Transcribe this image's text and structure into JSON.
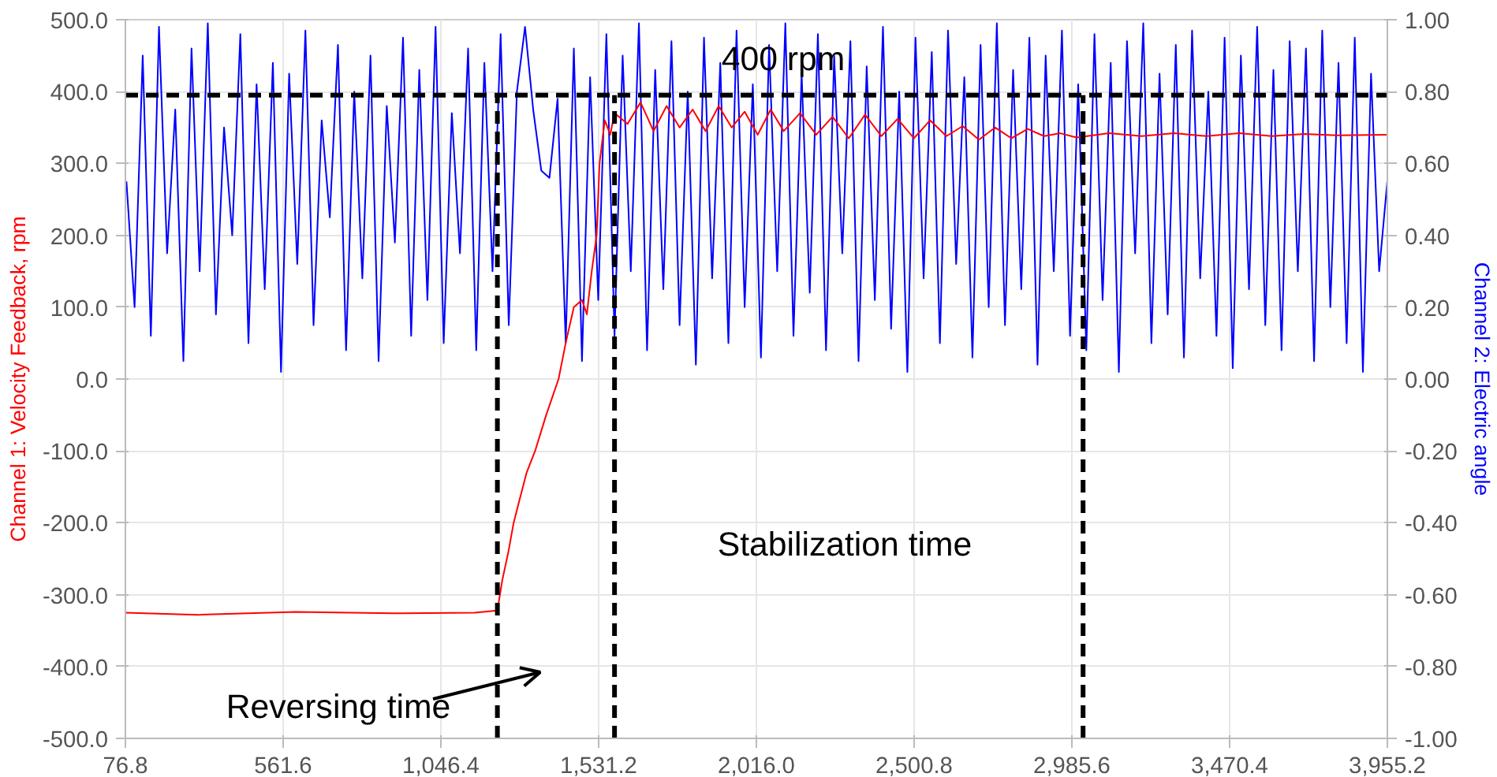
{
  "chart_data": {
    "type": "line",
    "xlabel": null,
    "ylabel": "Channel 1: Velocity Feedback, rpm",
    "y2label": "Channel 2: Electric angle",
    "xlim": [
      76.8,
      3955.2
    ],
    "xticks": [
      76.8,
      561.6,
      {
        "value": 1046.4,
        "label": "1,046.4"
      },
      {
        "value": 1531.2,
        "label": "1,531.2"
      },
      {
        "value": 2016.0,
        "label": "2,016.0"
      },
      {
        "value": 2500.8,
        "label": "2,500.8"
      },
      {
        "value": 2985.6,
        "label": "2,985.6"
      },
      {
        "value": 3470.4,
        "label": "3,470.4"
      },
      {
        "value": 3955.2,
        "label": "3,955.2"
      }
    ],
    "ylim": [
      -500,
      500
    ],
    "yticks": [
      {
        "value": -500,
        "label": "-500.0"
      },
      {
        "value": -400,
        "label": "-400.0"
      },
      {
        "value": -300,
        "label": "-300.0"
      },
      {
        "value": -200,
        "label": "-200.0"
      },
      {
        "value": -100,
        "label": "-100.0"
      },
      {
        "value": 0,
        "label": "0.0"
      },
      {
        "value": 100,
        "label": "100.0"
      },
      {
        "value": 200,
        "label": "200.0"
      },
      {
        "value": 300,
        "label": "300.0"
      },
      {
        "value": 400,
        "label": "400.0"
      },
      {
        "value": 500,
        "label": "500.0"
      }
    ],
    "y2lim": [
      -1,
      1
    ],
    "y2ticks": [
      {
        "value": -1,
        "label": "-1.00"
      },
      {
        "value": -0.8,
        "label": "-0.80"
      },
      {
        "value": -0.6,
        "label": "-0.60"
      },
      {
        "value": -0.4,
        "label": "-0.40"
      },
      {
        "value": -0.2,
        "label": "-0.20"
      },
      {
        "value": 0,
        "label": "0.00"
      },
      {
        "value": 0.2,
        "label": "0.20"
      },
      {
        "value": 0.4,
        "label": "0.40"
      },
      {
        "value": 0.6,
        "label": "0.60"
      },
      {
        "value": 0.8,
        "label": "0.80"
      },
      {
        "value": 1,
        "label": "1.00"
      }
    ],
    "grid": true,
    "line_style": "solid",
    "series": [
      {
        "color": "#0000ff",
        "axis": "y2",
        "x": [
          80,
          105,
          130,
          155,
          180,
          205,
          230,
          255,
          280,
          305,
          330,
          355,
          380,
          405,
          430,
          455,
          480,
          505,
          530,
          555,
          580,
          605,
          630,
          655,
          680,
          705,
          730,
          755,
          780,
          805,
          830,
          855,
          880,
          905,
          930,
          955,
          980,
          1005,
          1030,
          1055,
          1080,
          1105,
          1130,
          1155,
          1180,
          1205,
          1230,
          1255,
          1280,
          1305,
          1330,
          1355,
          1380,
          1405,
          1430,
          1455,
          1480,
          1505,
          1530,
          1555,
          1580,
          1605,
          1630,
          1655,
          1680,
          1705,
          1730,
          1755,
          1780,
          1805,
          1830,
          1855,
          1880,
          1905,
          1930,
          1955,
          1980,
          2005,
          2030,
          2055,
          2080,
          2105,
          2130,
          2155,
          2180,
          2205,
          2230,
          2255,
          2280,
          2305,
          2330,
          2355,
          2380,
          2405,
          2430,
          2455,
          2480,
          2505,
          2530,
          2555,
          2580,
          2605,
          2630,
          2655,
          2680,
          2705,
          2730,
          2755,
          2780,
          2805,
          2830,
          2855,
          2880,
          2905,
          2930,
          2955,
          2980,
          3005,
          3030,
          3055,
          3080,
          3105,
          3130,
          3155,
          3180,
          3205,
          3230,
          3255,
          3280,
          3305,
          3330,
          3355,
          3380,
          3405,
          3430,
          3455,
          3480,
          3505,
          3530,
          3555,
          3580,
          3605,
          3630,
          3655,
          3680,
          3705,
          3730,
          3755,
          3780,
          3805,
          3830,
          3855,
          3880,
          3905,
          3930,
          3955
        ],
        "values": [
          0.55,
          0.2,
          0.9,
          0.12,
          0.98,
          0.35,
          0.75,
          0.05,
          0.92,
          0.3,
          0.99,
          0.18,
          0.7,
          0.4,
          0.96,
          0.1,
          0.82,
          0.25,
          0.88,
          0.02,
          0.85,
          0.32,
          0.97,
          0.15,
          0.72,
          0.45,
          0.93,
          0.08,
          0.8,
          0.28,
          0.9,
          0.05,
          0.76,
          0.38,
          0.95,
          0.12,
          0.86,
          0.22,
          0.98,
          0.1,
          0.74,
          0.35,
          0.92,
          0.08,
          0.88,
          0.3,
          0.96,
          0.15,
          0.8,
          0.98,
          0.75,
          0.58,
          0.56,
          0.78,
          0.1,
          0.92,
          0.05,
          0.84,
          0.22,
          0.96,
          0.12,
          0.9,
          0.3,
          0.99,
          0.08,
          0.86,
          0.25,
          0.94,
          0.15,
          0.8,
          0.04,
          0.95,
          0.28,
          0.88,
          0.1,
          0.97,
          0.2,
          0.82,
          0.06,
          0.93,
          0.3,
          0.99,
          0.12,
          0.85,
          0.24,
          0.96,
          0.08,
          0.9,
          0.35,
          0.94,
          0.05,
          0.87,
          0.22,
          0.98,
          0.14,
          0.8,
          0.02,
          0.95,
          0.28,
          0.91,
          0.1,
          0.97,
          0.32,
          0.84,
          0.06,
          0.93,
          0.2,
          0.99,
          0.15,
          0.86,
          0.25,
          0.95,
          0.04,
          0.9,
          0.3,
          0.97,
          0.12,
          0.82,
          0.08,
          0.96,
          0.22,
          0.88,
          0.02,
          0.94,
          0.35,
          0.99,
          0.1,
          0.85,
          0.18,
          0.93,
          0.06,
          0.97,
          0.28,
          0.8,
          0.12,
          0.95,
          0.03,
          0.9,
          0.25,
          0.98,
          0.15,
          0.86,
          0.08,
          0.94,
          0.3,
          0.92,
          0.05,
          0.97,
          0.2,
          0.88,
          0.1,
          0.95,
          0.02,
          0.85,
          0.3,
          0.55
        ]
      },
      {
        "color": "#ff0000",
        "x": [
          76.8,
          300,
          600,
          900,
          1150,
          1220,
          1235,
          1254,
          1270,
          1287,
          1310,
          1336,
          1370,
          1408,
          1430,
          1455,
          1480,
          1495,
          1510,
          1525,
          1534,
          1550,
          1567,
          1580,
          1620,
          1660,
          1700,
          1740,
          1780,
          1820,
          1860,
          1900,
          1940,
          1980,
          2020,
          2060,
          2100,
          2150,
          2200,
          2250,
          2300,
          2350,
          2400,
          2450,
          2500,
          2550,
          2600,
          2650,
          2700,
          2750,
          2800,
          2850,
          2900,
          2950,
          3000,
          3100,
          3200,
          3300,
          3400,
          3500,
          3600,
          3700,
          3800,
          3955
        ],
        "values": [
          -325,
          -328,
          -324,
          -326,
          -325,
          -322,
          -280,
          -240,
          -200,
          -170,
          -130,
          -100,
          -50,
          0,
          50,
          100,
          110,
          90,
          150,
          200,
          300,
          360,
          340,
          370,
          355,
          385,
          345,
          380,
          350,
          375,
          345,
          380,
          350,
          372,
          340,
          375,
          345,
          370,
          340,
          365,
          335,
          368,
          338,
          362,
          335,
          360,
          338,
          352,
          333,
          350,
          335,
          348,
          338,
          342,
          336,
          342,
          338,
          342,
          338,
          342,
          338,
          341,
          339,
          340
        ]
      }
    ],
    "ref_lines": [
      {
        "axis": "y",
        "value": 395,
        "color": "#000000",
        "line_style": "dashed"
      },
      {
        "axis": "x",
        "value": 1220,
        "color": "#000000",
        "line_style": "dashed"
      },
      {
        "axis": "x",
        "value": 1580,
        "color": "#000000",
        "line_style": "dashed"
      },
      {
        "axis": "x",
        "value": 3020,
        "color": "#000000",
        "line_style": "dashed"
      }
    ],
    "annotations": [
      "400 rpm",
      "Stabilization time",
      "Reversing time"
    ]
  }
}
